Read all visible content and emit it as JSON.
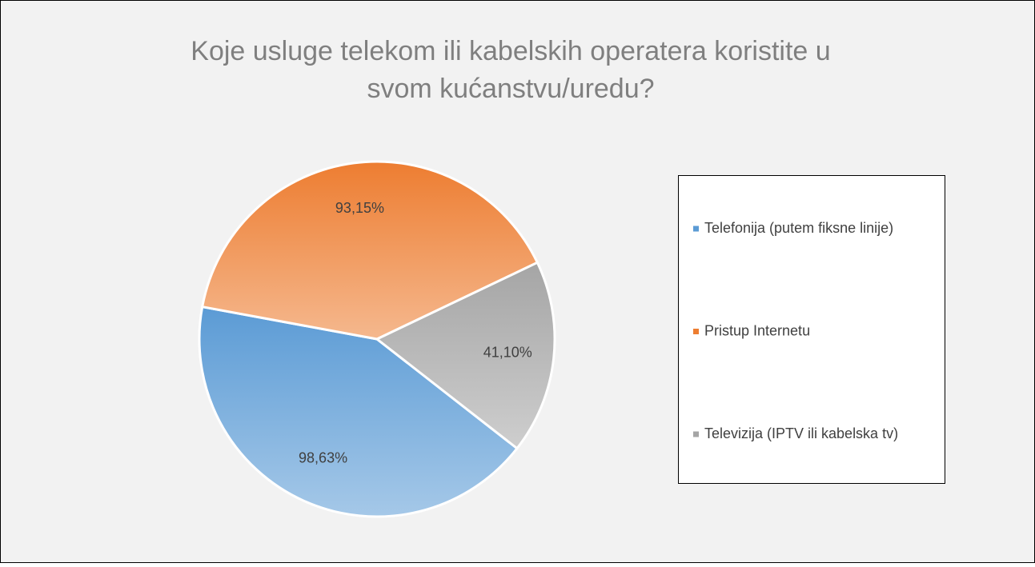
{
  "chart_data": {
    "type": "pie",
    "title": [
      "Koje usluge telekom ili kabelskih operatera koristite u",
      "svom kućanstvu/uredu?"
    ],
    "categories": [
      "Telefonija (putem fiksne linije)",
      "Pristup Internetu",
      "Televizija (IPTV ili kabelska tv)"
    ],
    "values": [
      98.63,
      93.15,
      41.1
    ],
    "value_labels": [
      "98,63%",
      "93,15%",
      "41,10%"
    ],
    "colors": [
      "#5b9bd5",
      "#ed7d31",
      "#a5a5a5"
    ],
    "legend": "right"
  }
}
